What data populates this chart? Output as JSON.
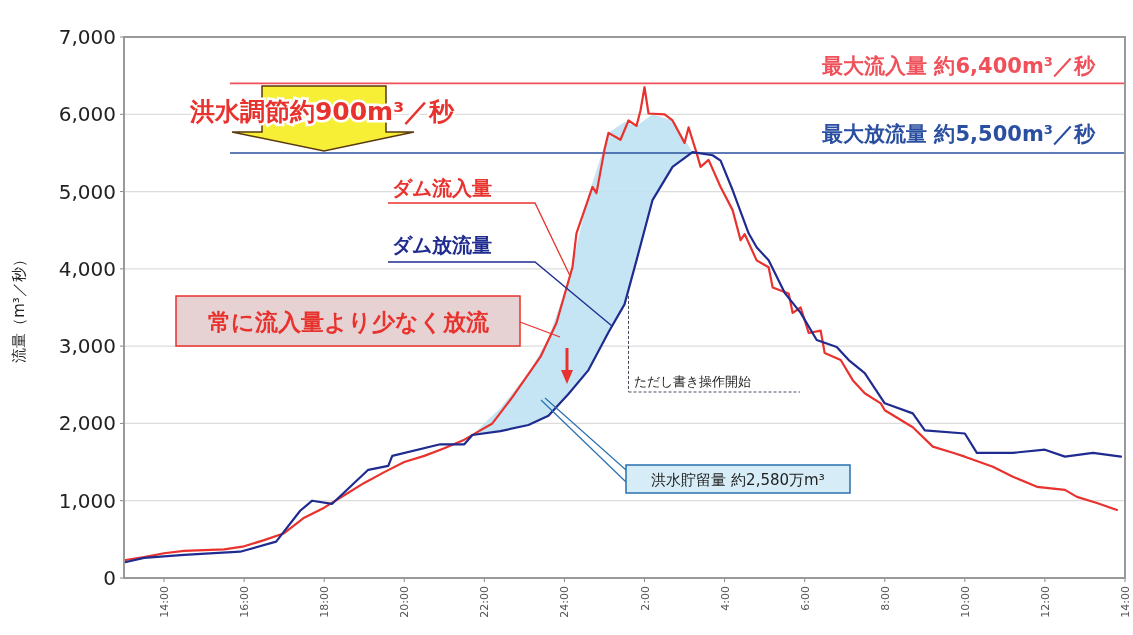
{
  "chart_data": {
    "type": "line",
    "ylabel": "流量（m³／秒）",
    "xlim": [
      "2000-01-01T13:00",
      "2000-01-02T14:00"
    ],
    "ylim": [
      0,
      7000
    ],
    "xticks": [
      {
        "value": "2000-01-01T14:00",
        "label": "14:00"
      },
      {
        "value": "2000-01-01T16:00",
        "label": "16:00"
      },
      {
        "value": "2000-01-01T18:00",
        "label": "18:00"
      },
      {
        "value": "2000-01-01T20:00",
        "label": "20:00"
      },
      {
        "value": "2000-01-01T22:00",
        "label": "22:00"
      },
      {
        "value": "2000-01-02T00:00",
        "label": "24:00"
      },
      {
        "value": "2000-01-02T02:00",
        "label": "2:00"
      },
      {
        "value": "2000-01-02T04:00",
        "label": "4:00"
      },
      {
        "value": "2000-01-02T06:00",
        "label": "6:00"
      },
      {
        "value": "2000-01-02T08:00",
        "label": "8:00"
      },
      {
        "value": "2000-01-02T10:00",
        "label": "10:00"
      },
      {
        "value": "2000-01-02T12:00",
        "label": "12:00"
      },
      {
        "value": "2000-01-02T14:00",
        "label": "14:00"
      }
    ],
    "yticks": [
      0,
      {
        "value": 1000,
        "label": "1,000"
      },
      {
        "value": 2000,
        "label": "2,000"
      },
      {
        "value": 3000,
        "label": "3,000"
      },
      {
        "value": 4000,
        "label": "4,000"
      },
      {
        "value": 5000,
        "label": "5,000"
      },
      {
        "value": 6000,
        "label": "6,000"
      },
      {
        "value": 7000,
        "label": "7,000"
      }
    ],
    "grid": "y",
    "series": [
      {
        "name": "ダム流入量",
        "color": "#e8322e",
        "x": [
          "2000-01-01T13:00",
          "2000-01-01T13:30",
          "2000-01-01T14:00",
          "2000-01-01T14:30",
          "2000-01-01T15:30",
          "2000-01-01T16:00",
          "2000-01-01T16:30",
          "2000-01-01T17:00",
          "2000-01-01T17:30",
          "2000-01-01T18:00",
          "2000-01-01T18:30",
          "2000-01-01T19:00",
          "2000-01-01T19:30",
          "2000-01-01T20:00",
          "2000-01-01T20:30",
          "2000-01-01T21:00",
          "2000-01-01T21:30",
          "2000-01-01T21:54",
          "2000-01-01T22:12",
          "2000-01-01T22:42",
          "2000-01-01T23:24",
          "2000-01-01T23:48",
          "2000-01-02T00:12",
          "2000-01-02T00:18",
          "2000-01-02T00:42",
          "2000-01-02T00:48",
          "2000-01-02T01:00",
          "2000-01-02T01:06",
          "2000-01-02T01:24",
          "2000-01-02T01:36",
          "2000-01-02T01:48",
          "2000-01-02T01:54",
          "2000-01-02T02:00",
          "2000-01-02T02:06",
          "2000-01-02T02:30",
          "2000-01-02T02:42",
          "2000-01-02T03:00",
          "2000-01-02T03:06",
          "2000-01-02T03:18",
          "2000-01-02T03:24",
          "2000-01-02T03:36",
          "2000-01-02T03:54",
          "2000-01-02T04:12",
          "2000-01-02T04:24",
          "2000-01-02T04:30",
          "2000-01-02T04:48",
          "2000-01-02T05:06",
          "2000-01-02T05:12",
          "2000-01-02T05:36",
          "2000-01-02T05:42",
          "2000-01-02T05:54",
          "2000-01-02T06:06",
          "2000-01-02T06:24",
          "2000-01-02T06:30",
          "2000-01-02T06:54",
          "2000-01-02T07:12",
          "2000-01-02T07:30",
          "2000-01-02T07:54",
          "2000-01-02T08:00",
          "2000-01-02T08:42",
          "2000-01-02T09:12",
          "2000-01-02T09:42",
          "2000-01-02T10:00",
          "2000-01-02T10:42",
          "2000-01-02T11:12",
          "2000-01-02T11:48",
          "2000-01-02T12:30",
          "2000-01-02T12:48",
          "2000-01-02T13:18",
          "2000-01-02T13:48"
        ],
        "values": [
          230,
          270,
          320,
          350,
          370,
          410,
          490,
          580,
          780,
          910,
          1070,
          1230,
          1370,
          1500,
          1580,
          1680,
          1790,
          1910,
          2000,
          2340,
          2860,
          3300,
          4020,
          4460,
          5060,
          4980,
          5540,
          5760,
          5670,
          5920,
          5850,
          6050,
          6350,
          6010,
          6000,
          5920,
          5630,
          5830,
          5500,
          5320,
          5410,
          5060,
          4760,
          4370,
          4450,
          4110,
          4020,
          3760,
          3680,
          3430,
          3500,
          3170,
          3200,
          2910,
          2820,
          2560,
          2390,
          2260,
          2170,
          1950,
          1700,
          1620,
          1570,
          1440,
          1310,
          1180,
          1140,
          1050,
          970,
          880
        ]
      },
      {
        "name": "ダム放流量",
        "color": "#1f2b8f",
        "x": [
          "2000-01-01T13:00",
          "2000-01-01T13:30",
          "2000-01-01T14:30",
          "2000-01-01T15:54",
          "2000-01-01T16:48",
          "2000-01-01T17:24",
          "2000-01-01T17:42",
          "2000-01-01T18:12",
          "2000-01-01T19:06",
          "2000-01-01T19:36",
          "2000-01-01T19:42",
          "2000-01-01T20:54",
          "2000-01-01T21:30",
          "2000-01-01T21:42",
          "2000-01-01T22:24",
          "2000-01-01T23:06",
          "2000-01-01T23:36",
          "2000-01-02T00:06",
          "2000-01-02T00:36",
          "2000-01-02T01:06",
          "2000-01-02T01:30",
          "2000-01-02T01:48",
          "2000-01-02T02:12",
          "2000-01-02T02:42",
          "2000-01-02T03:12",
          "2000-01-02T03:42",
          "2000-01-02T03:54",
          "2000-01-02T04:12",
          "2000-01-02T04:36",
          "2000-01-02T04:48",
          "2000-01-02T05:06",
          "2000-01-02T05:30",
          "2000-01-02T05:54",
          "2000-01-02T06:18",
          "2000-01-02T06:48",
          "2000-01-02T07:06",
          "2000-01-02T07:30",
          "2000-01-02T08:00",
          "2000-01-02T08:42",
          "2000-01-02T09:00",
          "2000-01-02T10:00",
          "2000-01-02T10:18",
          "2000-01-02T11:12",
          "2000-01-02T12:00",
          "2000-01-02T12:30",
          "2000-01-02T13:12",
          "2000-01-02T13:54"
        ],
        "values": [
          200,
          260,
          300,
          340,
          470,
          870,
          1000,
          960,
          1400,
          1450,
          1580,
          1730,
          1730,
          1850,
          1900,
          1980,
          2100,
          2380,
          2690,
          3180,
          3540,
          4110,
          4890,
          5320,
          5510,
          5470,
          5400,
          5020,
          4460,
          4280,
          4110,
          3690,
          3430,
          3080,
          2990,
          2820,
          2650,
          2260,
          2130,
          1910,
          1870,
          1620,
          1620,
          1660,
          1570,
          1620,
          1570
        ],
        "lower": [
          null,
          null,
          null,
          null,
          null,
          null,
          null,
          null,
          null,
          null,
          null,
          null,
          null,
          1850,
          1900,
          1980,
          2100,
          2380,
          2690,
          3180,
          3540,
          4110,
          4890,
          5320,
          5510,
          null,
          null,
          null,
          null,
          null,
          null,
          null,
          null,
          null,
          null,
          null,
          null,
          null,
          null,
          null,
          null,
          null,
          null,
          null,
          null,
          null,
          null
        ],
        "upper": [
          null,
          null,
          null,
          null,
          null,
          null,
          null,
          null,
          null,
          null,
          null,
          null,
          null,
          1850,
          2200,
          2650,
          3100,
          3850,
          4950,
          5760,
          5900,
          5850,
          6000,
          5920,
          5510,
          null,
          null,
          null,
          null,
          null,
          null,
          null,
          null,
          null,
          null,
          null,
          null,
          null,
          null,
          null,
          null,
          null,
          null,
          null,
          null,
          null,
          null
        ]
      }
    ],
    "ref_lines": [
      {
        "axis": "y",
        "value": 6400,
        "label": "最大流入量 約6,400m³／秒",
        "color": "#f0505a"
      },
      {
        "axis": "y",
        "value": 5500,
        "label": "最大放流量 約5,500m³／秒",
        "color": "#2a4fa0"
      }
    ],
    "annotations": [
      "洪水調節約900m³／秒",
      "常に流入量より少なく放流",
      {
        "text": "ただし書き操作開始",
        "x": "2000-01-02T01:36",
        "y": 3650
      },
      "洪水貯留量 約2,580万m³"
    ]
  }
}
